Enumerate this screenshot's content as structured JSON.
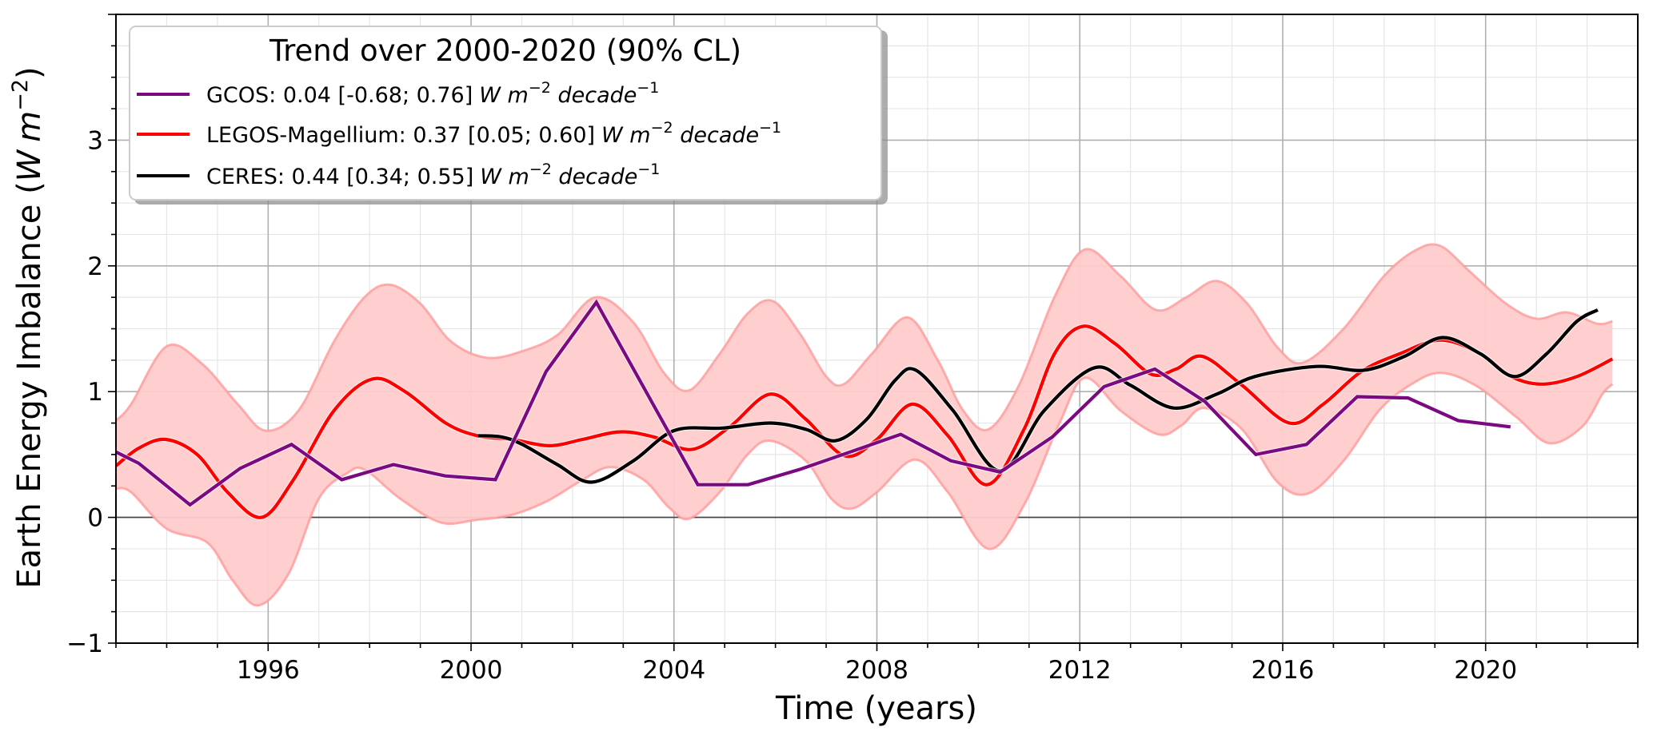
{
  "chart_data": {
    "type": "line",
    "title": "",
    "xlabel": "Time (years)",
    "ylabel": "Earth Energy Imbalance (W m^-2)",
    "ylabel_parts": {
      "main": "Earth Energy Imbalance (",
      "unit_w": "W",
      "unit_m": "m",
      "exp": "−2",
      "close": ")"
    },
    "xlim": [
      1993.0,
      2023.0
    ],
    "ylim": [
      -1,
      4
    ],
    "xticks": [
      1996,
      2000,
      2004,
      2008,
      2012,
      2016,
      2020
    ],
    "xtick_labels": [
      "1996",
      "2000",
      "2004",
      "2008",
      "2012",
      "2016",
      "2020"
    ],
    "yticks": [
      -1,
      0,
      1,
      2,
      3
    ],
    "ytick_labels": [
      "−1",
      "0",
      "1",
      "2",
      "3"
    ],
    "x_minor_step": 1,
    "y_minor_step": 0.25,
    "grid": true,
    "zero_line": true,
    "legend": {
      "placement": "top-left",
      "title": "Trend over 2000-2020 (90% CL)",
      "entries": [
        {
          "series": "GCOS",
          "text": "GCOS: 0.04 [-0.68; 0.76]",
          "unit": "W m",
          "unit_exp": "−2",
          "unit2": " decade",
          "unit2_exp": "−1",
          "color": "#7b0a82"
        },
        {
          "series": "LEGOS-Magellium",
          "text": "LEGOS-Magellium: 0.37 [0.05; 0.60]",
          "unit": "W m",
          "unit_exp": "−2",
          "unit2": " decade",
          "unit2_exp": "−1",
          "color": "#ff0000"
        },
        {
          "series": "CERES",
          "text": "CERES: 0.44 [0.34; 0.55]",
          "unit": "W m",
          "unit_exp": "−2",
          "unit2": " decade",
          "unit2_exp": "−1",
          "color": "#000000"
        }
      ]
    },
    "band": {
      "name": "LEGOS-Magellium uncertainty",
      "fill_color": "#ffcccc",
      "edge_color": "#ff9a9a",
      "upper": {
        "x": [
          1993.0,
          1993.3,
          1994.0,
          1994.7,
          1995.4,
          1995.95,
          1996.6,
          1997.3,
          1997.9,
          1998.4,
          1999.0,
          1999.6,
          2000.3,
          2001.0,
          2001.7,
          2002.45,
          2003.2,
          2003.8,
          2004.3,
          2004.9,
          2005.45,
          2005.95,
          2006.5,
          2007.0,
          2007.35,
          2007.9,
          2008.6,
          2009.2,
          2009.7,
          2010.2,
          2010.8,
          2011.5,
          2012.1,
          2012.8,
          2013.5,
          2014.1,
          2014.7,
          2015.3,
          2015.9,
          2016.4,
          2017.2,
          2018.0,
          2018.6,
          2019.1,
          2019.7,
          2020.4,
          2021.0,
          2021.6,
          2022.2,
          2022.5
        ],
        "y": [
          0.77,
          0.9,
          1.36,
          1.22,
          0.9,
          0.69,
          0.85,
          1.4,
          1.75,
          1.85,
          1.7,
          1.4,
          1.27,
          1.32,
          1.45,
          1.75,
          1.55,
          1.15,
          1.01,
          1.3,
          1.62,
          1.72,
          1.45,
          1.12,
          1.06,
          1.3,
          1.59,
          1.25,
          0.85,
          0.7,
          1.05,
          1.75,
          2.13,
          1.92,
          1.65,
          1.75,
          1.88,
          1.7,
          1.35,
          1.23,
          1.5,
          1.92,
          2.12,
          2.16,
          1.95,
          1.7,
          1.58,
          1.63,
          1.54,
          1.56
        ]
      },
      "lower": {
        "x": [
          1993.0,
          1993.3,
          1994.0,
          1994.8,
          1995.3,
          1995.8,
          1996.4,
          1997.0,
          1997.55,
          1997.9,
          1998.6,
          1999.4,
          2000.1,
          2000.8,
          2001.5,
          2002.2,
          2002.75,
          2003.4,
          2003.9,
          2004.3,
          2004.9,
          2005.45,
          2005.9,
          2006.6,
          2007.1,
          2007.5,
          2008.0,
          2008.75,
          2009.4,
          2010.2,
          2010.9,
          2011.6,
          2012.1,
          2012.8,
          2013.55,
          2014.0,
          2014.45,
          2015.2,
          2015.9,
          2016.5,
          2017.2,
          2017.9,
          2018.5,
          2019.1,
          2019.8,
          2020.6,
          2021.25,
          2021.9,
          2022.3,
          2022.5
        ],
        "y": [
          0.23,
          0.2,
          -0.09,
          -0.2,
          -0.5,
          -0.7,
          -0.45,
          0.15,
          0.35,
          0.38,
          0.15,
          -0.04,
          -0.02,
          0.02,
          0.13,
          0.3,
          0.4,
          0.3,
          0.08,
          -0.01,
          0.2,
          0.5,
          0.61,
          0.45,
          0.15,
          0.07,
          0.2,
          0.46,
          0.2,
          -0.25,
          0.1,
          0.75,
          1.11,
          0.85,
          0.66,
          0.73,
          0.87,
          0.7,
          0.28,
          0.19,
          0.45,
          0.85,
          1.05,
          1.15,
          1.05,
          0.8,
          0.59,
          0.72,
          0.98,
          1.06
        ]
      }
    },
    "series": [
      {
        "name": "LEGOS-Magellium",
        "color": "#ff0000",
        "smooth": true,
        "x": [
          1993.0,
          1993.45,
          1993.98,
          1994.6,
          1995.2,
          1995.87,
          1996.5,
          1997.3,
          1998.05,
          1998.7,
          1999.5,
          2000.12,
          2000.8,
          2001.54,
          2002.2,
          2002.93,
          2003.6,
          2004.35,
          2005.1,
          2005.9,
          2006.6,
          2007.36,
          2008.0,
          2008.7,
          2009.4,
          2010.17,
          2010.9,
          2011.5,
          2012.06,
          2012.7,
          2013.4,
          2013.9,
          2014.42,
          2015.2,
          2016.13,
          2016.8,
          2017.55,
          2018.3,
          2019.12,
          2019.9,
          2020.5,
          2021.11,
          2021.8,
          2022.5
        ],
        "y": [
          0.41,
          0.55,
          0.62,
          0.5,
          0.2,
          0.0,
          0.3,
          0.85,
          1.1,
          1.0,
          0.75,
          0.65,
          0.62,
          0.57,
          0.62,
          0.68,
          0.64,
          0.54,
          0.72,
          0.98,
          0.78,
          0.49,
          0.62,
          0.9,
          0.65,
          0.26,
          0.7,
          1.3,
          1.52,
          1.38,
          1.14,
          1.18,
          1.28,
          1.05,
          0.75,
          0.9,
          1.16,
          1.3,
          1.41,
          1.3,
          1.12,
          1.06,
          1.12,
          1.26
        ]
      },
      {
        "name": "CERES",
        "color": "#000000",
        "smooth": true,
        "x": [
          2000.14,
          2000.6,
          2001.01,
          2001.7,
          2002.38,
          2003.2,
          2004.0,
          2004.95,
          2005.9,
          2006.6,
          2007.19,
          2007.8,
          2008.36,
          2008.77,
          2009.5,
          2010.43,
          2011.3,
          2012.29,
          2013.0,
          2013.85,
          2014.7,
          2015.45,
          2016.66,
          2017.6,
          2018.4,
          2019.15,
          2019.9,
          2020.57,
          2021.2,
          2021.8,
          2022.21
        ],
        "y": [
          0.65,
          0.64,
          0.58,
          0.42,
          0.28,
          0.45,
          0.69,
          0.71,
          0.75,
          0.7,
          0.61,
          0.78,
          1.09,
          1.17,
          0.85,
          0.37,
          0.85,
          1.19,
          1.05,
          0.87,
          0.98,
          1.12,
          1.2,
          1.17,
          1.28,
          1.43,
          1.3,
          1.12,
          1.3,
          1.56,
          1.65
        ]
      },
      {
        "name": "GCOS",
        "color": "#7b0a82",
        "smooth": false,
        "x": [
          1993.0,
          1993.45,
          1994.46,
          1995.45,
          1996.46,
          1997.45,
          1998.47,
          1999.49,
          2000.48,
          2001.48,
          2002.47,
          2004.47,
          2005.46,
          2006.47,
          2007.47,
          2008.47,
          2009.46,
          2010.43,
          2011.46,
          2012.48,
          2013.48,
          2014.47,
          2015.47,
          2016.47,
          2017.47,
          2018.47,
          2019.46,
          2020.49
        ],
        "y": [
          0.52,
          0.43,
          0.1,
          0.39,
          0.58,
          0.3,
          0.42,
          0.33,
          0.3,
          1.16,
          1.71,
          0.26,
          0.26,
          0.38,
          0.52,
          0.66,
          0.45,
          0.36,
          0.64,
          1.04,
          1.18,
          0.92,
          0.5,
          0.58,
          0.96,
          0.95,
          0.77,
          0.72
        ]
      }
    ]
  }
}
